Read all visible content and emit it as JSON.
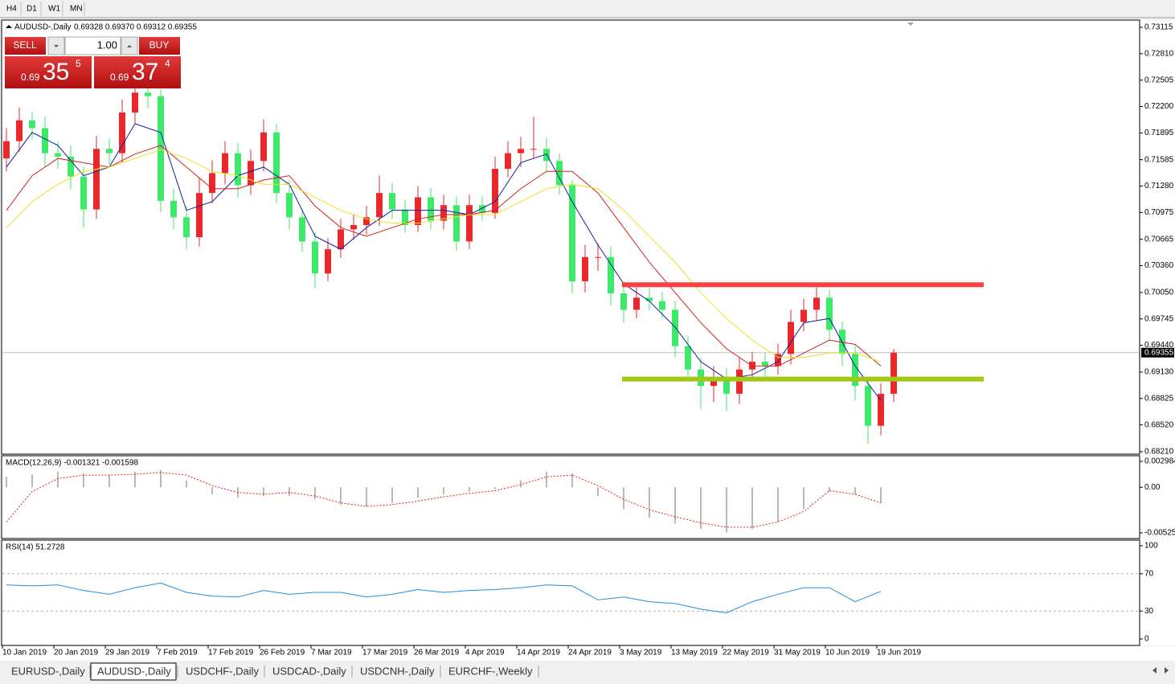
{
  "toolbar": {
    "timeframes": [
      "H4",
      "D1",
      "W1",
      "MN"
    ]
  },
  "trade": {
    "sell": "SELL",
    "lot": "1.00",
    "buy": "BUY",
    "bid": {
      "big": "0.69",
      "pips": "35",
      "frac": "5"
    },
    "ask": {
      "big": "0.69",
      "pips": "37",
      "frac": "4"
    }
  },
  "tabs": [
    "EURUSD-,Daily",
    "AUDUSD-,Daily",
    "USDCHF-,Daily",
    "USDCAD-,Daily",
    "USDCNH-,Daily",
    "EURCHF-,Weekly"
  ],
  "chart_data": [
    {
      "type": "candlestick",
      "title": "AUDUSD-,Daily",
      "quote": "0.69328 0.69370 0.69312 0.69355",
      "up_color": "#e8282c",
      "down_color": "#3ee86a",
      "categories": [
        "10 Jan 2019",
        null,
        null,
        null,
        "20 Jan 2019",
        null,
        null,
        null,
        "29 Jan 2019",
        null,
        null,
        null,
        "7 Feb 2019",
        null,
        null,
        null,
        "17 Feb 2019",
        null,
        null,
        null,
        "26 Feb 2019",
        null,
        null,
        null,
        "7 Mar 2019",
        null,
        null,
        null,
        "17 Mar 2019",
        null,
        null,
        null,
        "26 Mar 2019",
        null,
        null,
        null,
        "4 Apr 2019",
        null,
        null,
        null,
        "14 Apr 2019",
        null,
        null,
        null,
        "24 Apr 2019",
        null,
        null,
        null,
        "3 May 2019",
        null,
        null,
        null,
        "13 May 2019",
        null,
        null,
        null,
        "22 May 2019",
        null,
        null,
        null,
        "31 May 2019",
        null,
        null,
        null,
        "10 Jun 2019",
        null,
        null,
        null,
        "19 Jun 2019",
        null
      ],
      "open": [
        0.716,
        0.718,
        0.7204,
        0.7195,
        0.7166,
        0.7162,
        0.7139,
        0.7101,
        0.7171,
        0.7166,
        0.7213,
        0.7236,
        0.7232,
        0.7111,
        0.7092,
        0.7069,
        0.712,
        0.7143,
        0.7166,
        0.7129,
        0.7157,
        0.719,
        0.712,
        0.7092,
        0.7064,
        0.7027,
        0.7055,
        0.7078,
        0.7083,
        0.7092,
        0.712,
        0.7101,
        0.7083,
        0.7115,
        0.7088,
        0.7106,
        0.7064,
        0.7106,
        0.7097,
        0.7148,
        0.7166,
        0.7171,
        0.7171,
        0.7157,
        0.7129,
        0.7018,
        0.7046,
        0.7046,
        0.7004,
        0.6985,
        0.6999,
        0.6995,
        0.6985,
        0.6943,
        0.6916,
        0.6897,
        0.6906,
        0.6888,
        0.6916,
        0.6925,
        0.692,
        0.6934,
        0.6971,
        0.6985,
        0.6999,
        0.6962,
        0.6934,
        0.6897,
        0.6851,
        0.6888
      ],
      "high": [
        0.7195,
        0.7219,
        0.7214,
        0.7208,
        0.718,
        0.7175,
        0.715,
        0.7186,
        0.7183,
        0.7228,
        0.725,
        0.7248,
        0.724,
        0.7125,
        0.7104,
        0.7138,
        0.7158,
        0.718,
        0.7178,
        0.717,
        0.7205,
        0.72,
        0.7135,
        0.7102,
        0.7075,
        0.7068,
        0.709,
        0.7095,
        0.7105,
        0.714,
        0.7132,
        0.7112,
        0.7128,
        0.7126,
        0.7118,
        0.7116,
        0.7118,
        0.7117,
        0.7162,
        0.718,
        0.7185,
        0.7208,
        0.7184,
        0.7166,
        0.7135,
        0.706,
        0.7062,
        0.7058,
        0.7018,
        0.7012,
        0.701,
        0.7006,
        0.6995,
        0.6955,
        0.693,
        0.692,
        0.6918,
        0.693,
        0.6936,
        0.6935,
        0.6946,
        0.6985,
        0.6998,
        0.7016,
        0.7008,
        0.6972,
        0.6944,
        0.6905,
        0.69,
        0.694
      ],
      "low": [
        0.7145,
        0.7168,
        0.7182,
        0.715,
        0.7148,
        0.7124,
        0.708,
        0.709,
        0.7152,
        0.7155,
        0.72,
        0.7218,
        0.7098,
        0.7078,
        0.7055,
        0.7058,
        0.7108,
        0.713,
        0.7115,
        0.7118,
        0.7145,
        0.7108,
        0.7078,
        0.7052,
        0.701,
        0.7018,
        0.7045,
        0.7066,
        0.7072,
        0.7082,
        0.709,
        0.7074,
        0.7075,
        0.7078,
        0.7078,
        0.7053,
        0.7055,
        0.7088,
        0.709,
        0.7138,
        0.715,
        0.716,
        0.7144,
        0.7118,
        0.7004,
        0.7005,
        0.703,
        0.699,
        0.697,
        0.6975,
        0.6984,
        0.6975,
        0.693,
        0.6902,
        0.687,
        0.6878,
        0.6868,
        0.6876,
        0.6905,
        0.6906,
        0.691,
        0.6922,
        0.696,
        0.6972,
        0.695,
        0.692,
        0.688,
        0.683,
        0.684,
        0.6878
      ],
      "close": [
        0.718,
        0.7204,
        0.7195,
        0.7166,
        0.7162,
        0.7139,
        0.7101,
        0.7171,
        0.7166,
        0.7213,
        0.7236,
        0.7232,
        0.7111,
        0.7092,
        0.7069,
        0.712,
        0.7143,
        0.7166,
        0.7129,
        0.7157,
        0.719,
        0.712,
        0.7092,
        0.7064,
        0.7027,
        0.7055,
        0.7078,
        0.7083,
        0.7092,
        0.712,
        0.7101,
        0.7083,
        0.7115,
        0.7088,
        0.7106,
        0.7064,
        0.7106,
        0.7097,
        0.7148,
        0.7166,
        0.7171,
        0.7171,
        0.7157,
        0.7129,
        0.7018,
        0.7046,
        0.7046,
        0.7004,
        0.6985,
        0.6999,
        0.6995,
        0.6985,
        0.6943,
        0.6916,
        0.6897,
        0.6906,
        0.6888,
        0.6916,
        0.6925,
        0.692,
        0.6934,
        0.6971,
        0.6985,
        0.6999,
        0.6962,
        0.6934,
        0.6897,
        0.6851,
        0.6888,
        0.69355
      ],
      "x": [
        0,
        2,
        4,
        6,
        8,
        10,
        12,
        14,
        16,
        18,
        20,
        22,
        24,
        26,
        28,
        30,
        32,
        34,
        36,
        38,
        40,
        42,
        44,
        46,
        48,
        50,
        52,
        54,
        56,
        58,
        60,
        62,
        64,
        66,
        68
      ],
      "series": [
        {
          "color": "#1020a0",
          "values": [
            0.715,
            0.719,
            0.7175,
            0.714,
            0.715,
            0.72,
            0.719,
            0.71,
            0.711,
            0.714,
            0.715,
            0.713,
            0.707,
            0.7055,
            0.708,
            0.71,
            0.71,
            0.71,
            0.7095,
            0.711,
            0.7155,
            0.7165,
            0.711,
            0.706,
            0.7015,
            0.6995,
            0.6965,
            0.6925,
            0.6905,
            0.691,
            0.6925,
            0.697,
            0.6975,
            0.692,
            0.688
          ]
        },
        {
          "color": "#d42020",
          "values": [
            0.71,
            0.714,
            0.716,
            0.7155,
            0.715,
            0.7165,
            0.7175,
            0.715,
            0.7125,
            0.7125,
            0.7135,
            0.714,
            0.7105,
            0.708,
            0.707,
            0.708,
            0.709,
            0.7095,
            0.7095,
            0.71,
            0.7125,
            0.7145,
            0.7145,
            0.712,
            0.708,
            0.704,
            0.7005,
            0.697,
            0.694,
            0.692,
            0.692,
            0.6935,
            0.695,
            0.6945,
            0.692
          ]
        },
        {
          "color": "#f0e020",
          "values": [
            0.708,
            0.711,
            0.713,
            0.7145,
            0.715,
            0.716,
            0.717,
            0.716,
            0.7145,
            0.714,
            0.713,
            0.713,
            0.7115,
            0.71,
            0.709,
            0.7085,
            0.7085,
            0.709,
            0.7095,
            0.7095,
            0.711,
            0.7125,
            0.713,
            0.7125,
            0.71,
            0.707,
            0.704,
            0.7005,
            0.6975,
            0.695,
            0.693,
            0.693,
            0.6935,
            0.6935,
            0.6925
          ]
        }
      ],
      "levels": [
        {
          "value": 0.7014,
          "color": "#ff4040"
        },
        {
          "value": 0.6905,
          "color": "#a0c814"
        }
      ],
      "current_price": 0.69355,
      "ylim": [
        0.68182,
        0.7318
      ],
      "yticks": [
        0.73115,
        {
          "value": 0.7281,
          "label": "0.72810"
        },
        0.72505,
        {
          "value": 0.722,
          "label": "0.72200"
        },
        0.71895,
        0.71585,
        {
          "value": 0.7128,
          "label": "0.71280"
        },
        0.70975,
        0.70665,
        {
          "value": 0.7036,
          "label": "0.70360"
        },
        {
          "value": 0.7005,
          "label": "0.70050"
        },
        0.69745,
        {
          "value": 0.6944,
          "label": "0.69440"
        },
        {
          "value": 0.6913,
          "label": "0.69130"
        },
        0.68825,
        {
          "value": 0.6852,
          "label": "0.68520"
        },
        {
          "value": 0.6821,
          "label": "0.68210"
        }
      ]
    },
    {
      "type": "macd",
      "title": "MACD(12,26,9) -0.001321 -0.001598",
      "x": [
        0,
        2,
        4,
        6,
        8,
        10,
        12,
        14,
        16,
        18,
        20,
        22,
        24,
        26,
        28,
        30,
        32,
        34,
        36,
        38,
        40,
        42,
        44,
        46,
        48,
        50,
        52,
        54,
        56,
        58,
        60,
        62,
        64,
        66,
        68
      ],
      "histogram": {
        "color": "#b8b8b8",
        "values": [
          0.0012,
          0.0015,
          0.0018,
          0.0016,
          0.0014,
          0.0018,
          0.002,
          0.0008,
          -0.0008,
          -0.0012,
          -0.001,
          -0.001,
          -0.0014,
          -0.002,
          -0.0022,
          -0.0018,
          -0.0012,
          -0.0008,
          -0.0005,
          -0.0002,
          0.0008,
          0.0018,
          0.0016,
          -0.001,
          -0.0025,
          -0.0035,
          -0.0042,
          -0.0048,
          -0.0052,
          -0.0048,
          -0.004,
          -0.0025,
          -0.0005,
          -0.0008,
          -0.0018
        ]
      },
      "signal": {
        "color": "#e02020",
        "values": [
          -0.004,
          -0.0005,
          0.001,
          0.0014,
          0.0014,
          0.0015,
          0.0017,
          0.0014,
          0.0002,
          -0.0006,
          -0.0008,
          -0.0006,
          -0.001,
          -0.0018,
          -0.0022,
          -0.002,
          -0.0016,
          -0.0011,
          -0.0007,
          -0.0004,
          0.0003,
          0.0012,
          0.0014,
          0.0002,
          -0.0014,
          -0.0026,
          -0.0034,
          -0.0041,
          -0.0046,
          -0.0046,
          -0.004,
          -0.0028,
          -0.0004,
          -0.0008,
          -0.0018
        ]
      },
      "ylim": [
        -0.005256,
        0.002984
      ],
      "yticks": [
        0.002984,
        {
          "value": 0,
          "label": "0.00"
        },
        -0.005256
      ]
    },
    {
      "type": "line",
      "title": "RSI(14) 51.2728",
      "x": [
        0,
        2,
        4,
        6,
        8,
        10,
        12,
        14,
        16,
        18,
        20,
        22,
        24,
        26,
        28,
        30,
        32,
        34,
        36,
        38,
        40,
        42,
        44,
        46,
        48,
        50,
        52,
        54,
        56,
        58,
        60,
        62,
        64,
        66,
        68
      ],
      "series": [
        {
          "color": "#1e8fe0",
          "values": [
            58,
            57,
            58,
            52,
            48,
            55,
            60,
            50,
            46,
            45,
            52,
            48,
            50,
            50,
            45,
            48,
            53,
            50,
            52,
            53,
            55,
            58,
            57,
            42,
            45,
            40,
            38,
            32,
            28,
            40,
            48,
            55,
            55,
            40,
            51
          ]
        }
      ],
      "levels": [
        30,
        70
      ],
      "ylim": [
        0,
        100
      ],
      "yticks": [
        0,
        30,
        70,
        100
      ]
    }
  ]
}
